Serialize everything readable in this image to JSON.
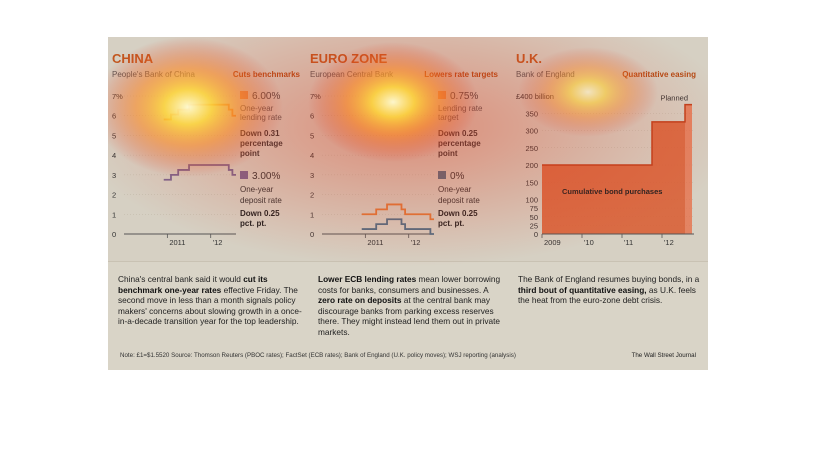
{
  "colors": {
    "orange": "#e07a3a",
    "purple": "#7a6590",
    "blue": "#4f6f86",
    "uk_red": "#e8643a",
    "uk_area": "#d95a2f"
  },
  "china": {
    "title": "CHINA",
    "subtitle": "People's Bank of China",
    "headline": "Cuts benchmarks",
    "lending_value": "6.00%",
    "lending_label": "One-year lending rate",
    "lending_change": "Down 0.31 percentage point",
    "deposit_value": "3.00%",
    "deposit_label": "One-year deposit rate",
    "deposit_change": "Down 0.25 pct. pt.",
    "text_pre": "China's central bank said it would ",
    "text_bold": "cut its benchmark one-year rates",
    "text_post": " effective Friday. The second move in less than a month signals policy makers' concerns about slowing growth in a once-in-a-decade transition year for the top leadership."
  },
  "euro": {
    "title": "EURO ZONE",
    "subtitle": "European Central Bank",
    "headline": "Lowers rate targets",
    "lending_value": "0.75%",
    "lending_label": "Lending rate target",
    "lending_change": "Down 0.25 percentage point",
    "deposit_value": "0%",
    "deposit_label": "One-year deposit rate",
    "deposit_change": "Down 0.25 pct. pt.",
    "text_bold1": "Lower ECB lending rates",
    "text_mid1": " mean lower borrowing costs for banks, consumers and businesses. A ",
    "text_bold2": "zero rate on deposits",
    "text_post": " at the central bank may discourage banks from parking excess reserves there. They might instead lend them out in private markets."
  },
  "uk": {
    "title": "U.K.",
    "subtitle": "Bank of England",
    "headline": "Quantitative easing",
    "planned": "Planned",
    "area_label": "Cumulative bond purchases",
    "y_unit_label": "£400 billion",
    "text_pre": "The Bank of England resumes buying bonds, in a ",
    "text_bold": "third bout of quantitative easing,",
    "text_post": " as U.K. feels the heat from the euro-zone debt crisis."
  },
  "footnote": "Note: £1=$1.5520    Source: Thomson Reuters (PBOC rates); FactSet (ECB rates); Bank of England (U.K. policy moves); WSJ reporting (analysis)",
  "publisher": "The Wall Street Journal",
  "chart_data": [
    {
      "type": "line",
      "title": "CHINA",
      "x": [
        "2010-12",
        "2011-02",
        "2011-04",
        "2011-07",
        "2012-06",
        "2012-07"
      ],
      "series": [
        {
          "name": "One-year lending rate",
          "values": [
            5.81,
            6.06,
            6.31,
            6.56,
            6.31,
            6.0
          ]
        },
        {
          "name": "One-year deposit rate",
          "values": [
            2.75,
            3.0,
            3.25,
            3.5,
            3.25,
            3.0
          ]
        }
      ],
      "xlabels": [
        "2011",
        "'12"
      ],
      "yticks": [
        0,
        1,
        2,
        3,
        4,
        5,
        6,
        7
      ],
      "ylabel": "%",
      "ylim": [
        0,
        7
      ]
    },
    {
      "type": "line",
      "title": "EURO ZONE",
      "x": [
        "2010-12",
        "2011-04",
        "2011-07",
        "2011-11",
        "2011-12",
        "2012-07"
      ],
      "series": [
        {
          "name": "Lending rate target",
          "values": [
            1.0,
            1.25,
            1.5,
            1.25,
            1.0,
            0.75
          ]
        },
        {
          "name": "One-year deposit rate",
          "values": [
            0.25,
            0.5,
            0.75,
            0.5,
            0.25,
            0.0
          ]
        }
      ],
      "xlabels": [
        "2011",
        "'12"
      ],
      "yticks": [
        0,
        1,
        2,
        3,
        4,
        5,
        6,
        7
      ],
      "ylabel": "%",
      "ylim": [
        0,
        7
      ]
    },
    {
      "type": "area",
      "title": "U.K.",
      "x": [
        "2009",
        "2010",
        "2011",
        "2012",
        "2012 Planned"
      ],
      "series": [
        {
          "name": "Cumulative bond purchases",
          "values": [
            200,
            200,
            200,
            325,
            375
          ]
        }
      ],
      "xlabels": [
        "2009",
        "'10",
        "'11",
        "'12"
      ],
      "yticks": [
        0,
        25,
        50,
        75,
        100,
        150,
        200,
        250,
        300,
        350
      ],
      "ylabel": "£400 billion",
      "ylim": [
        0,
        400
      ]
    }
  ]
}
